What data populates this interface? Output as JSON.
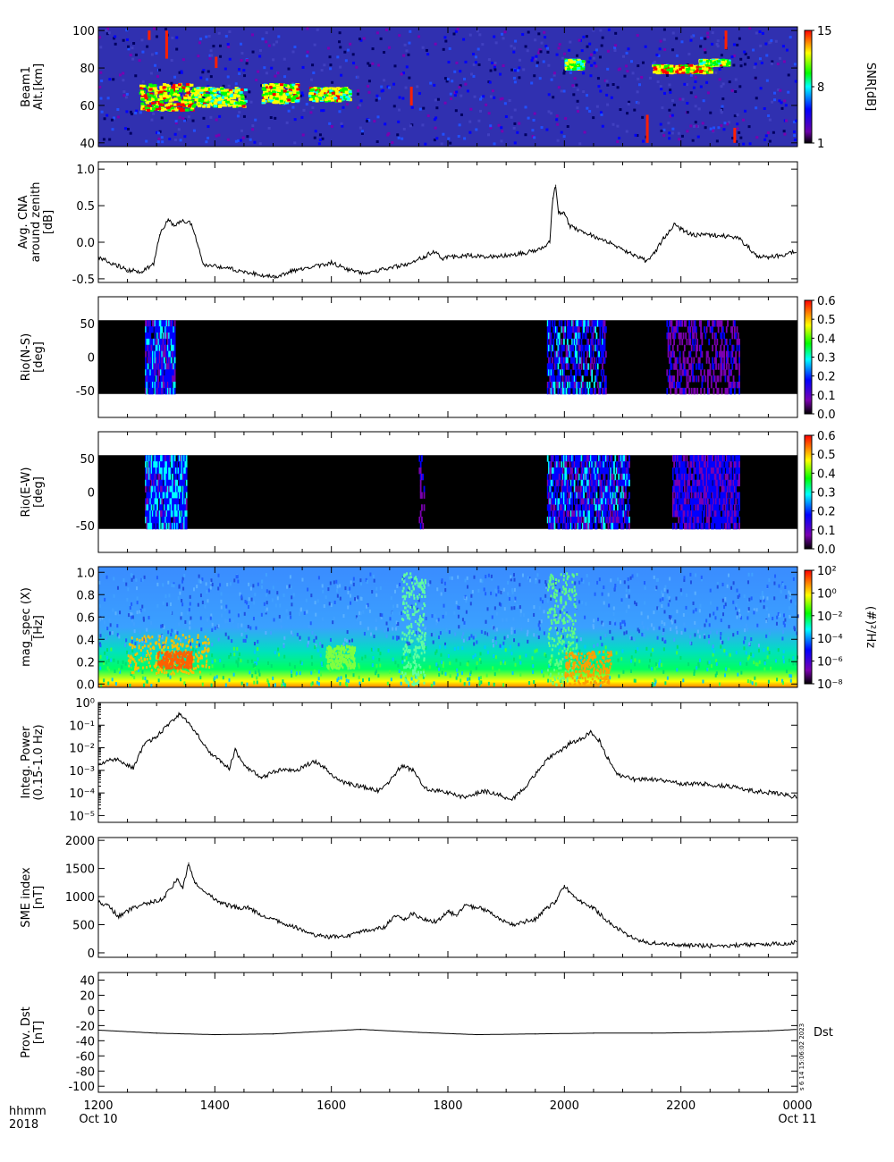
{
  "footer": {
    "row1_label": "hhmm",
    "row2_label": "2018",
    "stamp": "s  6 14 15:06:02 2023"
  },
  "x_axis": {
    "tick_labels": [
      {
        "label": "1200",
        "sub": "Oct 10"
      },
      {
        "label": "1400",
        "sub": ""
      },
      {
        "label": "1600",
        "sub": ""
      },
      {
        "label": "1800",
        "sub": ""
      },
      {
        "label": "2000",
        "sub": ""
      },
      {
        "label": "2200",
        "sub": ""
      },
      {
        "label": "0000",
        "sub": "Oct 11"
      }
    ],
    "range_hours": [
      12,
      24
    ]
  },
  "colors": {
    "background": "#000000",
    "line": "#000000",
    "rainbow": [
      "#000000",
      "#7a00b0",
      "#0000ff",
      "#00ffff",
      "#00ff00",
      "#ffff00",
      "#ff0000"
    ]
  },
  "chart_data": [
    {
      "type": "heatmap",
      "panel": "beam1",
      "ylabel_lines": [
        "Beam1",
        "Alt.[km]"
      ],
      "ylim": [
        38,
        102
      ],
      "yticks": [
        40,
        60,
        80,
        100
      ],
      "colorbar": {
        "label": "SNR[dB]",
        "ticks": [
          "15",
          "8",
          "1"
        ],
        "range": [
          1,
          15
        ]
      },
      "background": "#3030b0"
    },
    {
      "type": "line",
      "panel": "cna",
      "ylabel_lines": [
        "Avg. CNA",
        "around zenith",
        "[dB]"
      ],
      "ylim": [
        -0.55,
        1.1
      ],
      "yticks": [
        "-0.5",
        "0.0",
        "0.5",
        "1.0"
      ],
      "x": [
        12.0,
        12.5,
        12.75,
        12.95,
        13.05,
        13.2,
        13.3,
        13.45,
        13.6,
        13.8,
        14.2,
        14.6,
        15.0,
        15.3,
        15.6,
        16.0,
        16.3,
        16.6,
        17.0,
        17.3,
        17.6,
        17.75,
        17.9,
        18.3,
        18.7,
        19.0,
        19.3,
        19.6,
        19.75,
        19.8,
        19.85,
        19.9,
        20.0,
        20.1,
        20.3,
        20.6,
        20.8,
        21.0,
        21.2,
        21.4,
        21.55,
        21.7,
        21.9,
        22.0,
        22.2,
        22.5,
        22.8,
        23.0,
        23.3,
        23.5,
        23.7,
        24.0
      ],
      "y": [
        -0.2,
        -0.38,
        -0.4,
        -0.3,
        0.1,
        0.3,
        0.22,
        0.3,
        0.25,
        -0.3,
        -0.35,
        -0.42,
        -0.48,
        -0.4,
        -0.35,
        -0.28,
        -0.38,
        -0.42,
        -0.35,
        -0.3,
        -0.2,
        -0.12,
        -0.22,
        -0.18,
        -0.2,
        -0.18,
        -0.15,
        -0.1,
        0.02,
        0.6,
        0.78,
        0.42,
        0.38,
        0.22,
        0.15,
        0.05,
        -0.02,
        -0.1,
        -0.18,
        -0.25,
        -0.15,
        0.05,
        0.25,
        0.18,
        0.1,
        0.1,
        0.08,
        0.05,
        -0.18,
        -0.2,
        -0.18,
        -0.12
      ]
    },
    {
      "type": "heatmap",
      "panel": "riometer-ns",
      "ylabel_lines": [
        "Rio(N-S)",
        "[deg]"
      ],
      "ylim": [
        -90,
        90
      ],
      "yticks": [
        "-50",
        "0",
        "50"
      ],
      "data_extent": [
        -55,
        55
      ],
      "colorbar": {
        "ticks": [
          "0.0",
          "0.1",
          "0.2",
          "0.3",
          "0.4",
          "0.5",
          "0.6"
        ],
        "range": [
          0,
          0.63
        ]
      }
    },
    {
      "type": "heatmap",
      "panel": "riometer-ew",
      "ylabel_lines": [
        "Rio(E-W)",
        "[deg]"
      ],
      "ylim": [
        -90,
        90
      ],
      "yticks": [
        "-50",
        "0",
        "50"
      ],
      "data_extent": [
        -55,
        55
      ],
      "colorbar": {
        "ticks": [
          "0.0",
          "0.1",
          "0.2",
          "0.3",
          "0.4",
          "0.5",
          "0.6"
        ],
        "range": [
          0,
          0.63
        ]
      }
    },
    {
      "type": "heatmap",
      "panel": "mag-spectrogram",
      "ylabel_lines": [
        "mag_spec (X)",
        "[Hz]"
      ],
      "ylim": [
        -0.03,
        1.05
      ],
      "yticks": [
        "0.0",
        "0.2",
        "0.4",
        "0.6",
        "0.8",
        "1.0"
      ],
      "colorbar": {
        "label": "(#)²/Hz",
        "ticks": [
          "10⁻⁸",
          "10⁻⁶",
          "10⁻⁴",
          "10⁻²",
          "10⁰",
          "10²"
        ]
      }
    },
    {
      "type": "line",
      "panel": "integrated-power",
      "ylabel_lines": [
        "Integ. Power",
        "(0.15-1.0 Hz)"
      ],
      "log_scale": true,
      "ylim_log10": [
        -5.3,
        0
      ],
      "yticks": [
        "10⁻⁵",
        "10⁻⁴",
        "10⁻³",
        "10⁻²",
        "10⁻¹",
        "10⁰"
      ],
      "x": [
        12.0,
        12.3,
        12.6,
        12.8,
        13.0,
        13.2,
        13.4,
        13.55,
        13.7,
        13.9,
        14.1,
        14.25,
        14.35,
        14.5,
        14.8,
        15.1,
        15.4,
        15.7,
        15.9,
        16.1,
        16.3,
        16.5,
        16.8,
        17.0,
        17.2,
        17.4,
        17.6,
        17.8,
        18.0,
        18.3,
        18.6,
        18.9,
        19.1,
        19.3,
        19.5,
        19.7,
        19.9,
        20.1,
        20.3,
        20.45,
        20.6,
        20.75,
        20.9,
        21.2,
        21.6,
        22.0,
        22.4,
        22.8,
        23.2,
        23.6,
        24.0
      ],
      "y_log10": [
        -2.7,
        -2.5,
        -2.9,
        -1.8,
        -1.5,
        -1.0,
        -0.5,
        -0.9,
        -1.4,
        -2.2,
        -2.6,
        -2.9,
        -2.1,
        -2.8,
        -3.3,
        -3.0,
        -3.0,
        -2.6,
        -2.9,
        -3.4,
        -3.6,
        -3.7,
        -3.9,
        -3.5,
        -2.8,
        -3.0,
        -3.8,
        -3.9,
        -4.0,
        -4.2,
        -3.9,
        -4.1,
        -4.3,
        -3.8,
        -3.2,
        -2.5,
        -2.2,
        -1.8,
        -1.6,
        -1.3,
        -1.7,
        -2.5,
        -3.2,
        -3.4,
        -3.4,
        -3.6,
        -3.6,
        -3.7,
        -3.9,
        -4.0,
        -4.2
      ]
    },
    {
      "type": "line",
      "panel": "sme-index",
      "ylabel_lines": [
        "SME index",
        "[nT]"
      ],
      "ylim": [
        -80,
        2050
      ],
      "yticks": [
        "0",
        "500",
        "1000",
        "1500",
        "2000"
      ],
      "x": [
        12.0,
        12.15,
        12.35,
        12.6,
        12.9,
        13.1,
        13.35,
        13.45,
        13.55,
        13.65,
        13.8,
        14.0,
        14.2,
        14.4,
        14.6,
        14.8,
        15.0,
        15.2,
        15.4,
        15.6,
        15.8,
        16.0,
        16.3,
        16.6,
        16.9,
        17.1,
        17.25,
        17.4,
        17.6,
        17.8,
        18.0,
        18.15,
        18.3,
        18.5,
        18.7,
        18.9,
        19.1,
        19.3,
        19.5,
        19.7,
        19.85,
        20.0,
        20.15,
        20.3,
        20.5,
        20.7,
        20.9,
        21.1,
        21.4,
        21.8,
        22.2,
        22.6,
        23.0,
        23.4,
        23.8,
        24.0
      ],
      "y": [
        900,
        850,
        650,
        800,
        900,
        950,
        1300,
        1150,
        1600,
        1250,
        1100,
        950,
        850,
        800,
        800,
        650,
        600,
        500,
        450,
        350,
        300,
        280,
        300,
        400,
        450,
        650,
        600,
        700,
        600,
        550,
        750,
        650,
        850,
        800,
        750,
        600,
        500,
        550,
        600,
        800,
        900,
        1200,
        1000,
        900,
        800,
        600,
        450,
        300,
        180,
        150,
        130,
        120,
        140,
        150,
        170,
        200
      ]
    },
    {
      "type": "line",
      "panel": "dst",
      "ylabel_lines": [
        "Prov. Dst",
        "[nT]"
      ],
      "ylim": [
        -108,
        50
      ],
      "yticks": [
        "-100",
        "-80",
        "-60",
        "-40",
        "-20",
        "0",
        "20",
        "40"
      ],
      "legend": "Dst",
      "x": [
        12.0,
        13.0,
        14.0,
        15.0,
        16.0,
        16.5,
        17.5,
        18.5,
        19.5,
        20.5,
        21.5,
        22.5,
        23.5,
        24.0
      ],
      "y": [
        -26,
        -30,
        -32,
        -31,
        -27,
        -25,
        -29,
        -32,
        -31,
        -30,
        -30,
        -29,
        -27,
        -25
      ]
    }
  ]
}
